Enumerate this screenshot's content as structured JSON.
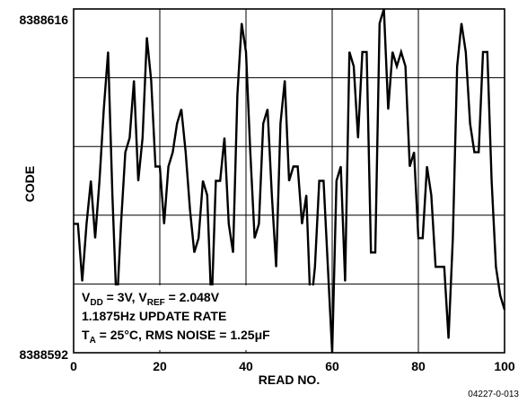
{
  "chart_data": {
    "type": "line",
    "title": "",
    "xlabel": "READ NO.",
    "ylabel": "CODE",
    "xlim": [
      0,
      100
    ],
    "ylim": [
      8388592,
      8388616
    ],
    "x_ticks": [
      "0",
      "20",
      "40",
      "60",
      "80",
      "100"
    ],
    "y_tick_min_label": "8388592",
    "y_tick_max_label": "8388616",
    "grid": true,
    "series": [
      {
        "values": [
          8388601,
          8388601,
          8388597,
          8388601,
          8388604,
          8388600,
          8388604,
          8388609,
          8388613,
          8388603,
          8388595,
          8388601,
          8388606,
          8388607,
          8388611,
          8388604,
          8388607,
          8388614,
          8388611,
          8388605,
          8388605,
          8388601,
          8388605,
          8388606,
          8388608,
          8388609,
          8388606,
          8388602,
          8388599,
          8388600,
          8388604,
          8388603,
          8388595,
          8388604,
          8388604,
          8388607,
          8388601,
          8388599,
          8388610,
          8388615,
          8388613,
          8388606,
          8388600,
          8388601,
          8388608,
          8388609,
          8388603,
          8388598,
          8388608,
          8388611,
          8388604,
          8388605,
          8388605,
          8388601,
          8388603,
          8388595,
          8388598,
          8388604,
          8388604,
          8388598,
          8388592,
          8388604,
          8388605,
          8388597,
          8388613,
          8388612,
          8388607,
          8388613,
          8388613,
          8388599,
          8388599,
          8388615,
          8388616,
          8388609,
          8388613,
          8388612,
          8388613,
          8388612,
          8388605,
          8388606,
          8388600,
          8388600,
          8388605,
          8388603,
          8388598,
          8388598,
          8388598,
          8388593,
          8388600,
          8388612,
          8388615,
          8388613,
          8388608,
          8388606,
          8388606,
          8388613,
          8388613,
          8388604,
          8388598,
          8388596,
          8388595
        ]
      }
    ],
    "annotation": {
      "line1": {
        "p1": "V",
        "p2": "DD",
        "p3": " = 3V, V",
        "p4": "REF",
        "p5": " = 2.048V"
      },
      "line2": "1.1875Hz UPDATE RATE",
      "line3": {
        "p1": "T",
        "p2": "A",
        "p3": " = 25°C, RMS NOISE = 1.25",
        "p4": "μ",
        "p5": "F"
      }
    },
    "figure_id": "04227-0-013"
  }
}
